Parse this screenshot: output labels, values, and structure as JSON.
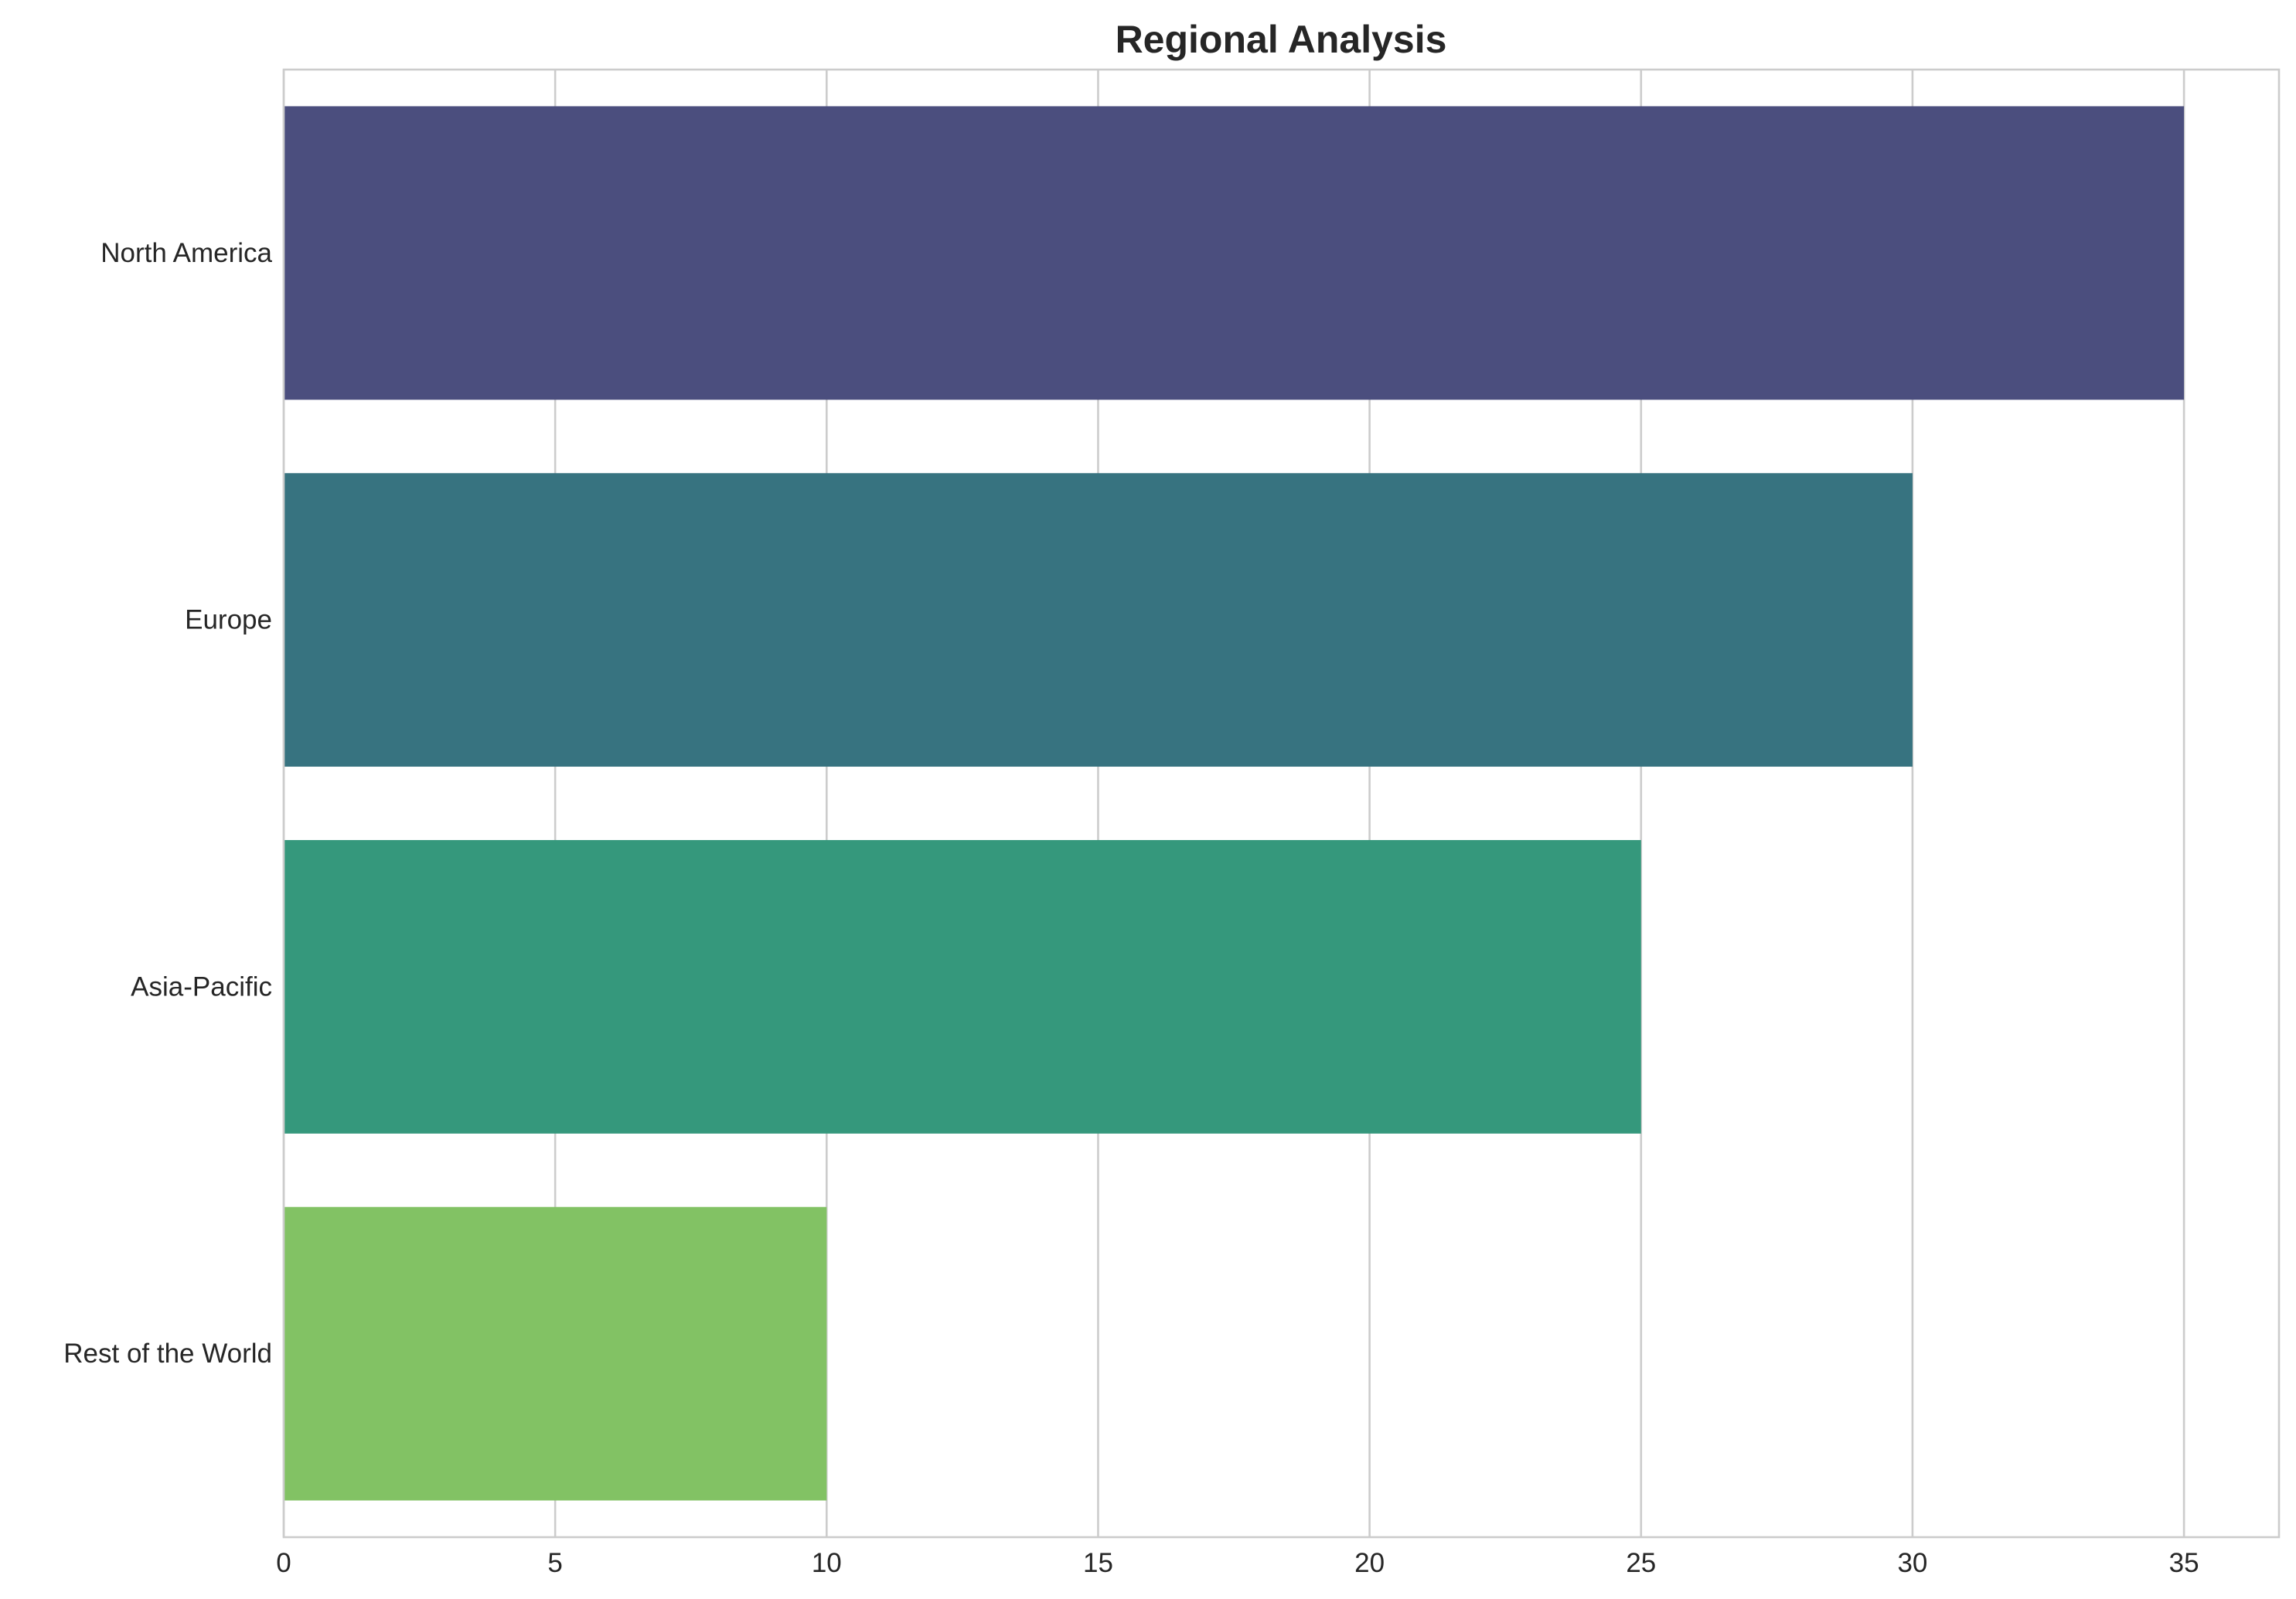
{
  "chart_data": {
    "type": "bar",
    "orientation": "horizontal",
    "title": "Regional Analysis",
    "xlabel": "",
    "ylabel": "",
    "categories": [
      "North America",
      "Europe",
      "Asia-Pacific",
      "Rest of the World"
    ],
    "values": [
      35,
      30,
      25,
      10
    ],
    "colors": [
      "#4b4e7e",
      "#377380",
      "#35987c",
      "#82c264"
    ],
    "xlim": [
      0,
      36.75
    ],
    "xticks": [
      0,
      5,
      10,
      15,
      20,
      25,
      30,
      35
    ],
    "xtick_labels": [
      "0",
      "5",
      "10",
      "15",
      "20",
      "25",
      "30",
      "35"
    ],
    "grid": "vertical",
    "legend": "none"
  }
}
